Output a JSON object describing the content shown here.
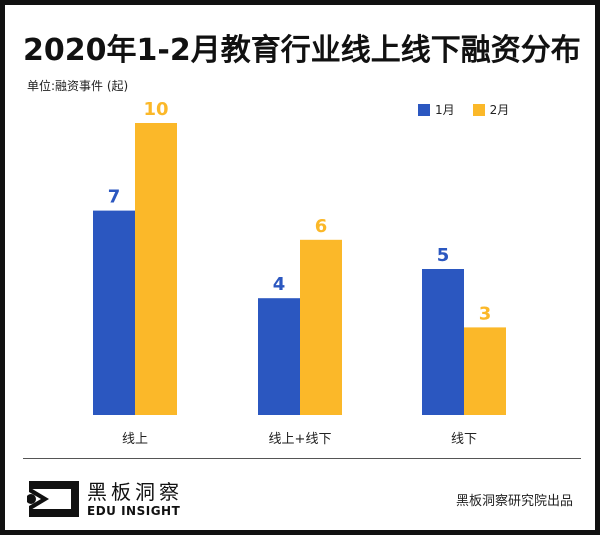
{
  "chart_data": {
    "type": "bar",
    "title": "2020年1-2月教育行业线上线下融资分布",
    "unit_label": "单位:融资事件 (起)",
    "categories": [
      "线上",
      "线上+线下",
      "线下"
    ],
    "series": [
      {
        "name": "1月",
        "values": [
          7,
          4,
          5
        ],
        "color": "#2b57c0"
      },
      {
        "name": "2月",
        "values": [
          10,
          6,
          3
        ],
        "color": "#fbb829"
      }
    ],
    "ylim": [
      0,
      10
    ],
    "grid": false,
    "legend_position": "top-right",
    "data_labels": true
  },
  "footer": {
    "logo_cn": "黑板洞察",
    "logo_en": "EDU INSIGHT",
    "credit": "黑板洞察研究院出品"
  }
}
